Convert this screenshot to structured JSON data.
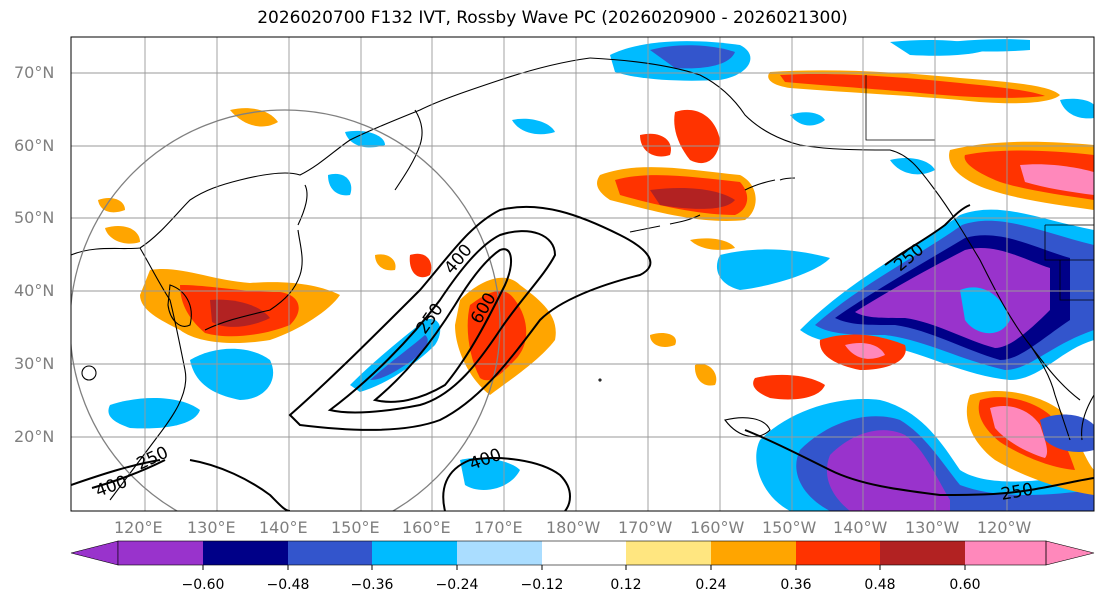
{
  "title": "2026020700 F132 IVT, Rossby Wave PC (2026020900 - 2026021300)",
  "lat_labels": [
    "70°N",
    "60°N",
    "50°N",
    "40°N",
    "30°N",
    "20°N"
  ],
  "lon_labels": [
    "120°E",
    "130°E",
    "140°E",
    "150°E",
    "160°E",
    "170°E",
    "180°W",
    "170°W",
    "160°W",
    "150°W",
    "140°W",
    "130°W",
    "120°W"
  ],
  "colorbar": {
    "ticks": [
      "−0.60",
      "−0.48",
      "−0.36",
      "−0.24",
      "−0.12",
      "0.12",
      "0.24",
      "0.36",
      "0.48",
      "0.60"
    ],
    "colors": [
      "#9933cc",
      "#000088",
      "#3355cc",
      "#00bbff",
      "#aaddff",
      "#ffffff",
      "#ffe680",
      "#ffa500",
      "#ff3300",
      "#b22222",
      "#ff88bb"
    ]
  },
  "contour_labels": [
    "400",
    "600",
    "250",
    "400",
    "250",
    "400",
    "250",
    "250"
  ],
  "colors": {
    "land_line": "#000000",
    "grid": "#999999",
    "circle": "#808080",
    "contour": "#000000"
  }
}
